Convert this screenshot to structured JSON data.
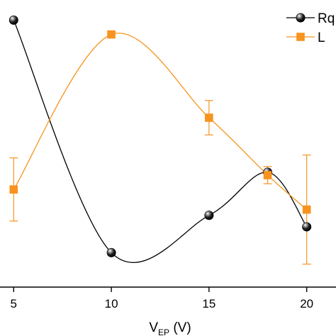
{
  "chart_data": {
    "type": "line",
    "title": "",
    "xlabel": {
      "main": "V",
      "sub": "EP",
      "unit": " (V)"
    },
    "ylabel": "",
    "xlim": [
      4.3,
      21.5
    ],
    "ylim": [
      0,
      1
    ],
    "x_ticks": [
      5,
      10,
      15,
      20
    ],
    "x_tick_labels": [
      "5",
      "10",
      "15",
      "20"
    ],
    "grid": false,
    "legend_position": "top-right",
    "series": [
      {
        "name": "Rq",
        "color": "#000000",
        "marker": "sphere",
        "x": [
          5,
          10,
          15,
          18,
          20
        ],
        "y": [
          0.93,
          0.12,
          0.25,
          0.4,
          0.21
        ],
        "error": [
          null,
          null,
          null,
          null,
          null
        ]
      },
      {
        "name": "L",
        "color": "#F7931E",
        "marker": "square",
        "x": [
          5,
          10,
          15,
          18,
          20
        ],
        "y": [
          0.34,
          0.88,
          0.59,
          0.39,
          0.27
        ],
        "error": [
          0.11,
          null,
          0.06,
          0.03,
          0.19
        ]
      }
    ]
  }
}
